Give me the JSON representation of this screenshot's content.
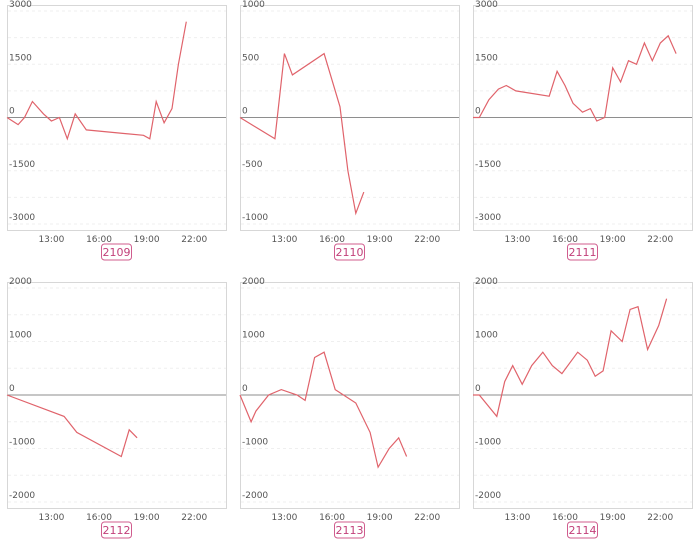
{
  "chart_data": [
    {
      "type": "line",
      "label": "2109",
      "x_ticks": [
        "13:00",
        "16:00",
        "19:00",
        "22:00"
      ],
      "y_ticks": [
        3000,
        1500,
        0,
        -1500,
        -3000
      ],
      "ylim": [
        -3000,
        3000
      ],
      "xlim": [
        10.2,
        24
      ],
      "x": [
        10.2,
        10.9,
        11.3,
        11.8,
        12.5,
        13.0,
        13.5,
        14.0,
        14.5,
        15.2,
        18.8,
        19.2,
        19.6,
        20.1,
        20.6,
        21.0,
        21.5
      ],
      "y": [
        0,
        -200,
        0,
        450,
        100,
        -100,
        0,
        -600,
        100,
        -350,
        -500,
        -600,
        450,
        -150,
        250,
        1500,
        2700
      ],
      "series_color": "#e0636b"
    },
    {
      "type": "line",
      "label": "2110",
      "x_ticks": [
        "13:00",
        "16:00",
        "19:00",
        "22:00"
      ],
      "y_ticks": [
        1000,
        500,
        0,
        -500,
        -1000
      ],
      "ylim": [
        -1000,
        1000
      ],
      "xlim": [
        10.2,
        24
      ],
      "x": [
        10.2,
        12.4,
        13.0,
        13.5,
        15.5,
        16.5,
        17.0,
        17.5,
        18.0
      ],
      "y": [
        0,
        -200,
        600,
        400,
        600,
        100,
        -500,
        -900,
        -700
      ],
      "series_color": "#e0636b"
    },
    {
      "type": "line",
      "label": "2111",
      "x_ticks": [
        "13:00",
        "16:00",
        "19:00",
        "22:00"
      ],
      "y_ticks": [
        3000,
        1500,
        0,
        -1500,
        -3000
      ],
      "ylim": [
        -3000,
        3000
      ],
      "xlim": [
        10.2,
        24
      ],
      "x": [
        10.2,
        10.6,
        11.2,
        11.8,
        12.3,
        12.9,
        15.0,
        15.5,
        16.0,
        16.5,
        17.1,
        17.6,
        18.0,
        18.5,
        19.0,
        19.5,
        20.0,
        20.5,
        21.0,
        21.5,
        22.0,
        22.5,
        23.0
      ],
      "y": [
        0,
        0,
        500,
        800,
        900,
        750,
        600,
        1300,
        900,
        400,
        150,
        250,
        -100,
        0,
        1400,
        1000,
        1600,
        1500,
        2100,
        1600,
        2100,
        2300,
        1800
      ],
      "series_color": "#e0636b"
    },
    {
      "type": "line",
      "label": "2112",
      "x_ticks": [
        "13:00",
        "16:00",
        "19:00",
        "22:00"
      ],
      "y_ticks": [
        2000,
        1000,
        0,
        -1000,
        -2000
      ],
      "ylim": [
        -2000,
        2000
      ],
      "xlim": [
        10.2,
        24
      ],
      "x": [
        10.2,
        13.8,
        14.6,
        17.4,
        17.9,
        18.4
      ],
      "y": [
        0,
        -400,
        -700,
        -1150,
        -650,
        -800
      ],
      "series_color": "#e0636b"
    },
    {
      "type": "line",
      "label": "2113",
      "x_ticks": [
        "13:00",
        "16:00",
        "19:00",
        "22:00"
      ],
      "y_ticks": [
        2000,
        1000,
        0,
        -1000,
        -2000
      ],
      "ylim": [
        -2000,
        2000
      ],
      "xlim": [
        10.2,
        24
      ],
      "x": [
        10.2,
        10.9,
        11.2,
        12.0,
        12.8,
        13.8,
        14.3,
        14.9,
        15.5,
        16.2,
        17.5,
        18.4,
        18.9,
        19.6,
        20.2,
        20.7
      ],
      "y": [
        0,
        -500,
        -300,
        0,
        100,
        0,
        -100,
        700,
        800,
        100,
        -150,
        -700,
        -1350,
        -1000,
        -800,
        -1150
      ],
      "series_color": "#e0636b"
    },
    {
      "type": "line",
      "label": "2114",
      "x_ticks": [
        "13:00",
        "16:00",
        "19:00",
        "22:00"
      ],
      "y_ticks": [
        2000,
        1000,
        0,
        -1000,
        -2000
      ],
      "ylim": [
        -2000,
        2000
      ],
      "xlim": [
        10.2,
        24
      ],
      "x": [
        10.2,
        10.6,
        11.7,
        12.2,
        12.7,
        13.3,
        13.9,
        14.6,
        15.2,
        15.8,
        16.8,
        17.4,
        17.9,
        18.4,
        18.9,
        19.6,
        20.1,
        20.6,
        21.2,
        21.9,
        22.4
      ],
      "y": [
        0,
        0,
        -400,
        250,
        550,
        200,
        550,
        800,
        550,
        400,
        800,
        650,
        350,
        450,
        1200,
        1000,
        1600,
        1650,
        850,
        1300,
        1800
      ],
      "series_color": "#e0636b"
    }
  ]
}
